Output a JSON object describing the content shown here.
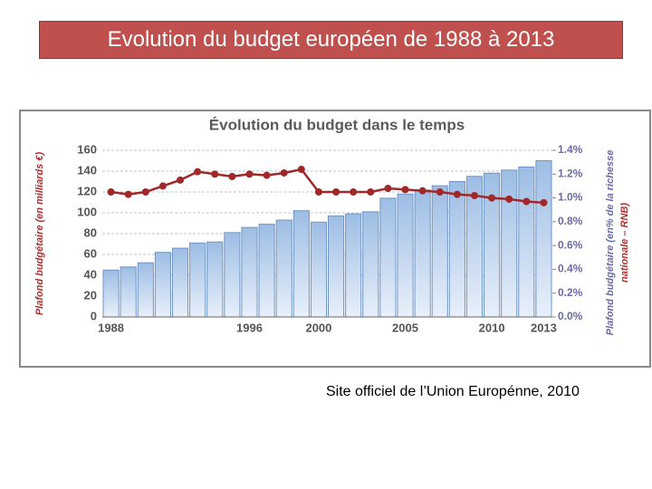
{
  "header": {
    "title": "Evolution du budget européen de 1988 à 2013"
  },
  "chart_data": {
    "type": "bar-line",
    "title": "Évolution du budget dans le temps",
    "ylabel": "Plafond budgétaire (en milliards €)",
    "y2label": [
      "Plafond budgétaire (en% de la richesse",
      "nationale – RNB)"
    ],
    "categories": [
      "1988",
      null,
      null,
      null,
      null,
      null,
      null,
      null,
      "1996",
      null,
      null,
      null,
      "2000",
      null,
      null,
      null,
      null,
      "2005",
      null,
      null,
      null,
      null,
      "2010",
      null,
      null,
      "2013"
    ],
    "series": [
      {
        "color": "#8fb3de",
        "values": [
          45,
          48,
          52,
          62,
          66,
          71,
          72,
          81,
          86,
          89,
          93,
          102,
          91,
          97,
          99,
          101,
          114,
          118,
          122,
          126,
          130,
          135,
          138,
          141,
          144,
          150
        ]
      },
      {
        "color": "#a02828",
        "axis": "y2",
        "values": [
          1.05,
          1.03,
          1.05,
          1.1,
          1.15,
          1.22,
          1.2,
          1.18,
          1.2,
          1.19,
          1.21,
          1.24,
          1.05,
          1.05,
          1.05,
          1.05,
          1.08,
          1.07,
          1.06,
          1.05,
          1.03,
          1.02,
          1.0,
          0.99,
          0.97,
          0.96
        ]
      }
    ],
    "ylim": [
      0,
      160
    ],
    "yticks": [
      0,
      20,
      40,
      60,
      80,
      100,
      120,
      140,
      160
    ],
    "y2lim": [
      0,
      1.4
    ],
    "y2ticks": [
      {
        "value": 0,
        "label": "0.0%"
      },
      {
        "value": 0.2,
        "label": "0.2%"
      },
      {
        "value": 0.4,
        "label": "0.4%"
      },
      {
        "value": 0.6,
        "label": "0.6%"
      },
      {
        "value": 0.8,
        "label": "0.8%"
      },
      {
        "value": 1.0,
        "label": "1.0%"
      },
      {
        "value": 1.2,
        "label": "1.2%"
      },
      {
        "value": 1.4,
        "label": "1.4%"
      }
    ],
    "grid": true
  },
  "caption": "Site officiel de l’Union Europénne, 2010"
}
